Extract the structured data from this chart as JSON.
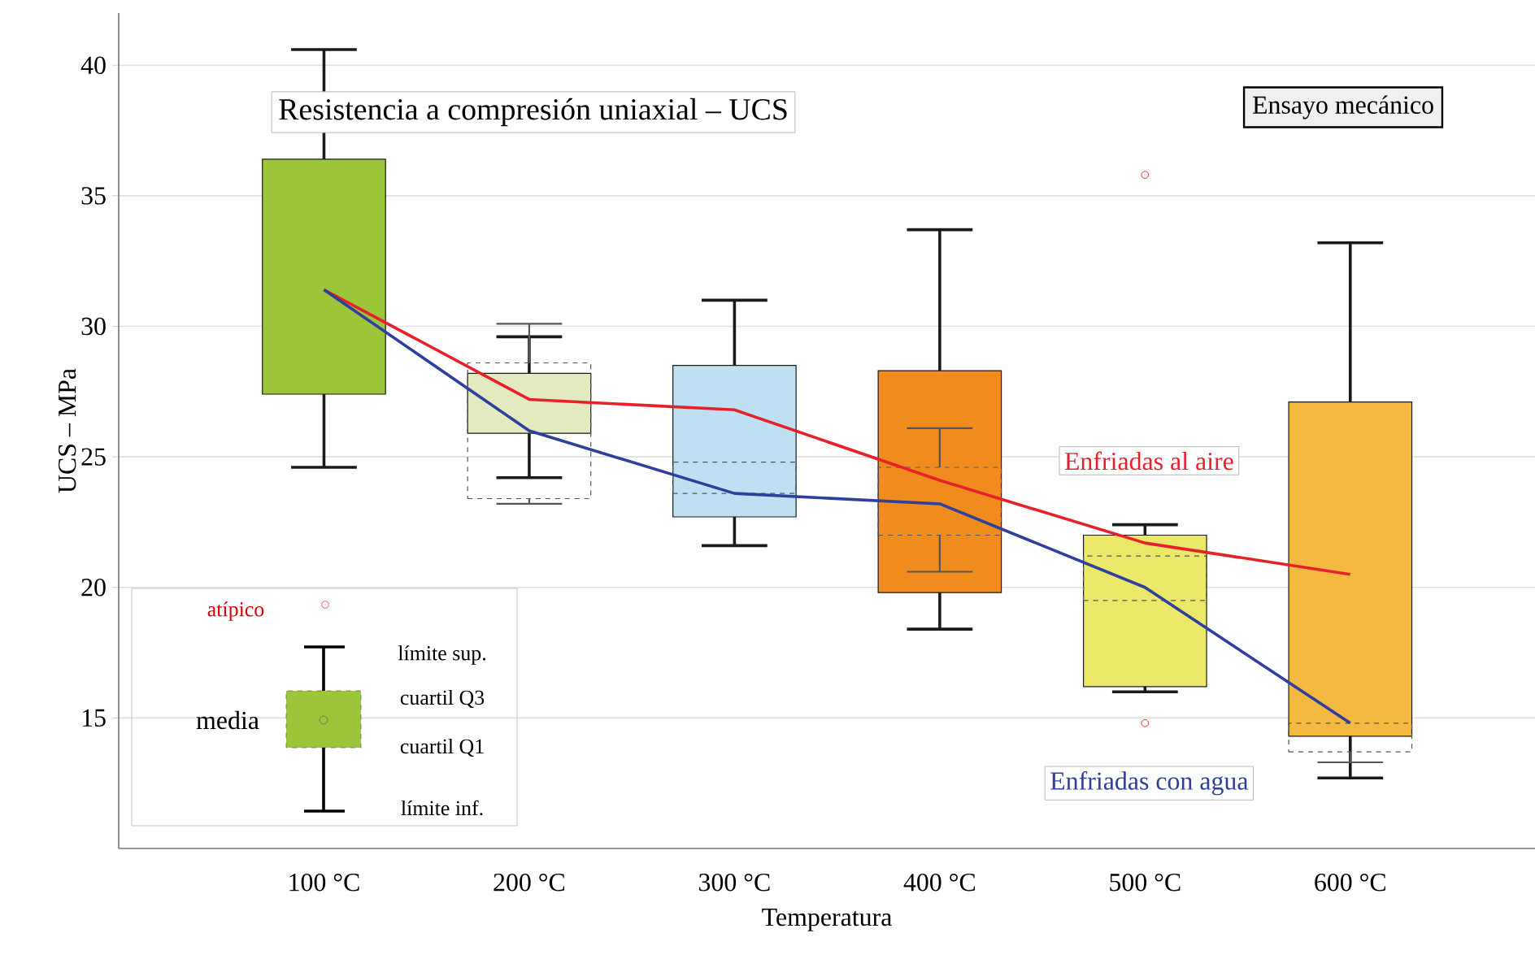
{
  "chart_data": {
    "type": "box",
    "title": "Resistencia a compresión uniaxial – UCS",
    "xlabel": "Temperatura",
    "ylabel": "UCS – MPa",
    "categories": [
      "100 °C",
      "200 °C",
      "300 °C",
      "400 °C",
      "500 °C",
      "600 °C"
    ],
    "ylim": [
      10,
      42
    ],
    "yticks": [
      15,
      20,
      25,
      30,
      35,
      40
    ],
    "grid": "y",
    "annotations": [
      "Ensayo mecánico",
      "atípico",
      "límite sup.",
      "cuartil Q3",
      "media",
      "cuartil Q1",
      "límite inf."
    ],
    "series": [
      {
        "type": "box",
        "color": "#1a1a1a",
        "line_style": "solid",
        "colors": [
          "#9dc53a",
          "#e4eac0",
          "#bfe0f2",
          "#f08c1e",
          "#ebe86a",
          "#f5b942"
        ],
        "boxes": [
          {
            "low": 24.6,
            "q1": 27.4,
            "q3": 36.4,
            "high": 40.6
          },
          {
            "low": 24.2,
            "q1": 25.9,
            "q3": 28.2,
            "high": 29.6
          },
          {
            "low": 21.6,
            "q1": 22.7,
            "q3": 28.5,
            "high": 31.0
          },
          {
            "low": 18.4,
            "q1": 19.8,
            "q3": 28.3,
            "high": 33.7
          },
          {
            "low": 16.0,
            "q1": 16.2,
            "q3": 22.0,
            "high": 22.4,
            "outliers": [
              35.8
            ]
          },
          {
            "low": 12.7,
            "q1": 14.3,
            "q3": 27.1,
            "high": 33.2
          }
        ]
      },
      {
        "type": "box",
        "color": "#555555",
        "line_style": "dashed",
        "boxes": [
          null,
          {
            "low": 23.2,
            "q1": 23.4,
            "q3": 28.6,
            "high": 30.1
          },
          {
            "low": 23.6,
            "q1": 23.6,
            "q3": 24.8,
            "high": 24.8
          },
          {
            "low": 20.6,
            "q1": 22.0,
            "q3": 24.6,
            "high": 26.1
          },
          {
            "low": 19.5,
            "q1": 19.5,
            "q3": 21.2,
            "high": 21.2,
            "outliers": [
              14.8
            ]
          },
          {
            "low": 13.3,
            "q1": 13.7,
            "q3": 14.8,
            "high": 14.8
          }
        ]
      },
      {
        "type": "line",
        "name": "Enfriadas al aire",
        "color": "#e8202a",
        "values": [
          31.4,
          27.2,
          26.8,
          24.1,
          21.7,
          20.5
        ]
      },
      {
        "type": "line",
        "name": "Enfriadas con agua",
        "color": "#2e3f9e",
        "values": [
          31.4,
          26.0,
          23.6,
          23.2,
          20.0,
          14.8
        ]
      }
    ]
  }
}
